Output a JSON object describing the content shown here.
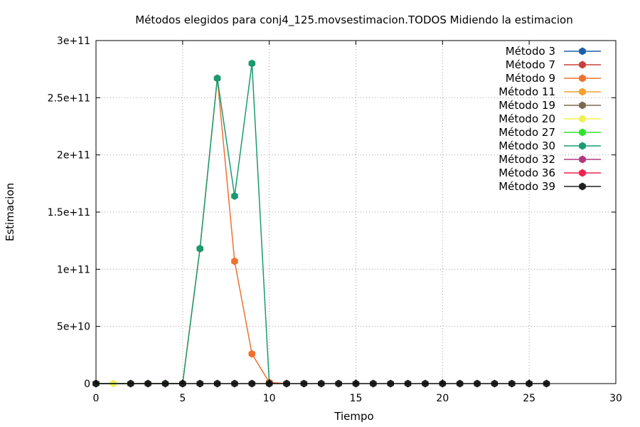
{
  "chart_data": {
    "type": "line",
    "title": "Métodos elegidos para conj4_125.movsestimacion.TODOS Midiendo la estimacion",
    "xlabel": "Tiempo",
    "ylabel": "Estimacion",
    "xlim": [
      0,
      30
    ],
    "ylim": [
      0,
      300000000000
    ],
    "xticks": [
      0,
      5,
      10,
      15,
      20,
      25,
      30
    ],
    "xtick_labels": [
      "0",
      "5",
      "10",
      "15",
      "20",
      "25",
      "30"
    ],
    "yticks": [
      0,
      50000000000,
      100000000000,
      150000000000,
      200000000000,
      250000000000,
      300000000000
    ],
    "ytick_labels": [
      "0",
      "5e+10",
      "1e+11",
      "1.5e+11",
      "2e+11",
      "2.5e+11",
      "3e+11"
    ],
    "grid": true,
    "legend_position": "top-right",
    "series": [
      {
        "name": "Método 3",
        "color": "#1f5fa8",
        "points": []
      },
      {
        "name": "Método 7",
        "color": "#c8403c",
        "points": []
      },
      {
        "name": "Método 9",
        "color": "#f07030",
        "points": [
          [
            0,
            0
          ],
          [
            5,
            0
          ],
          [
            6,
            118000000000
          ],
          [
            7,
            267000000000
          ],
          [
            8,
            107000000000
          ],
          [
            9,
            26000000000
          ],
          [
            10,
            1000000000
          ],
          [
            11,
            0
          ]
        ]
      },
      {
        "name": "Método 11",
        "color": "#f5a030",
        "points": []
      },
      {
        "name": "Método 19",
        "color": "#7a6a50",
        "points": []
      },
      {
        "name": "Método 20",
        "color": "#f0f050",
        "points": [
          [
            1,
            0
          ]
        ]
      },
      {
        "name": "Método 27",
        "color": "#30e030",
        "points": []
      },
      {
        "name": "Método 30",
        "color": "#1a9a70",
        "points": [
          [
            0,
            0
          ],
          [
            5,
            0
          ],
          [
            6,
            118000000000
          ],
          [
            7,
            267000000000
          ],
          [
            8,
            164000000000
          ],
          [
            9,
            280000000000
          ],
          [
            10,
            0
          ]
        ]
      },
      {
        "name": "Método 32",
        "color": "#b03880",
        "points": []
      },
      {
        "name": "Método 36",
        "color": "#f02050",
        "points": []
      },
      {
        "name": "Método 39",
        "color": "#202020",
        "points": [
          [
            0,
            0
          ],
          [
            2,
            0
          ],
          [
            3,
            0
          ],
          [
            4,
            0
          ],
          [
            5,
            0
          ],
          [
            6,
            0
          ],
          [
            7,
            0
          ],
          [
            8,
            0
          ],
          [
            9,
            0
          ],
          [
            10,
            0
          ],
          [
            11,
            0
          ],
          [
            12,
            0
          ],
          [
            13,
            0
          ],
          [
            14,
            0
          ],
          [
            15,
            0
          ],
          [
            16,
            0
          ],
          [
            17,
            0
          ],
          [
            18,
            0
          ],
          [
            19,
            0
          ],
          [
            20,
            0
          ],
          [
            21,
            0
          ],
          [
            22,
            0
          ],
          [
            23,
            0
          ],
          [
            24,
            0
          ],
          [
            25,
            0
          ],
          [
            26,
            0
          ]
        ]
      }
    ]
  }
}
